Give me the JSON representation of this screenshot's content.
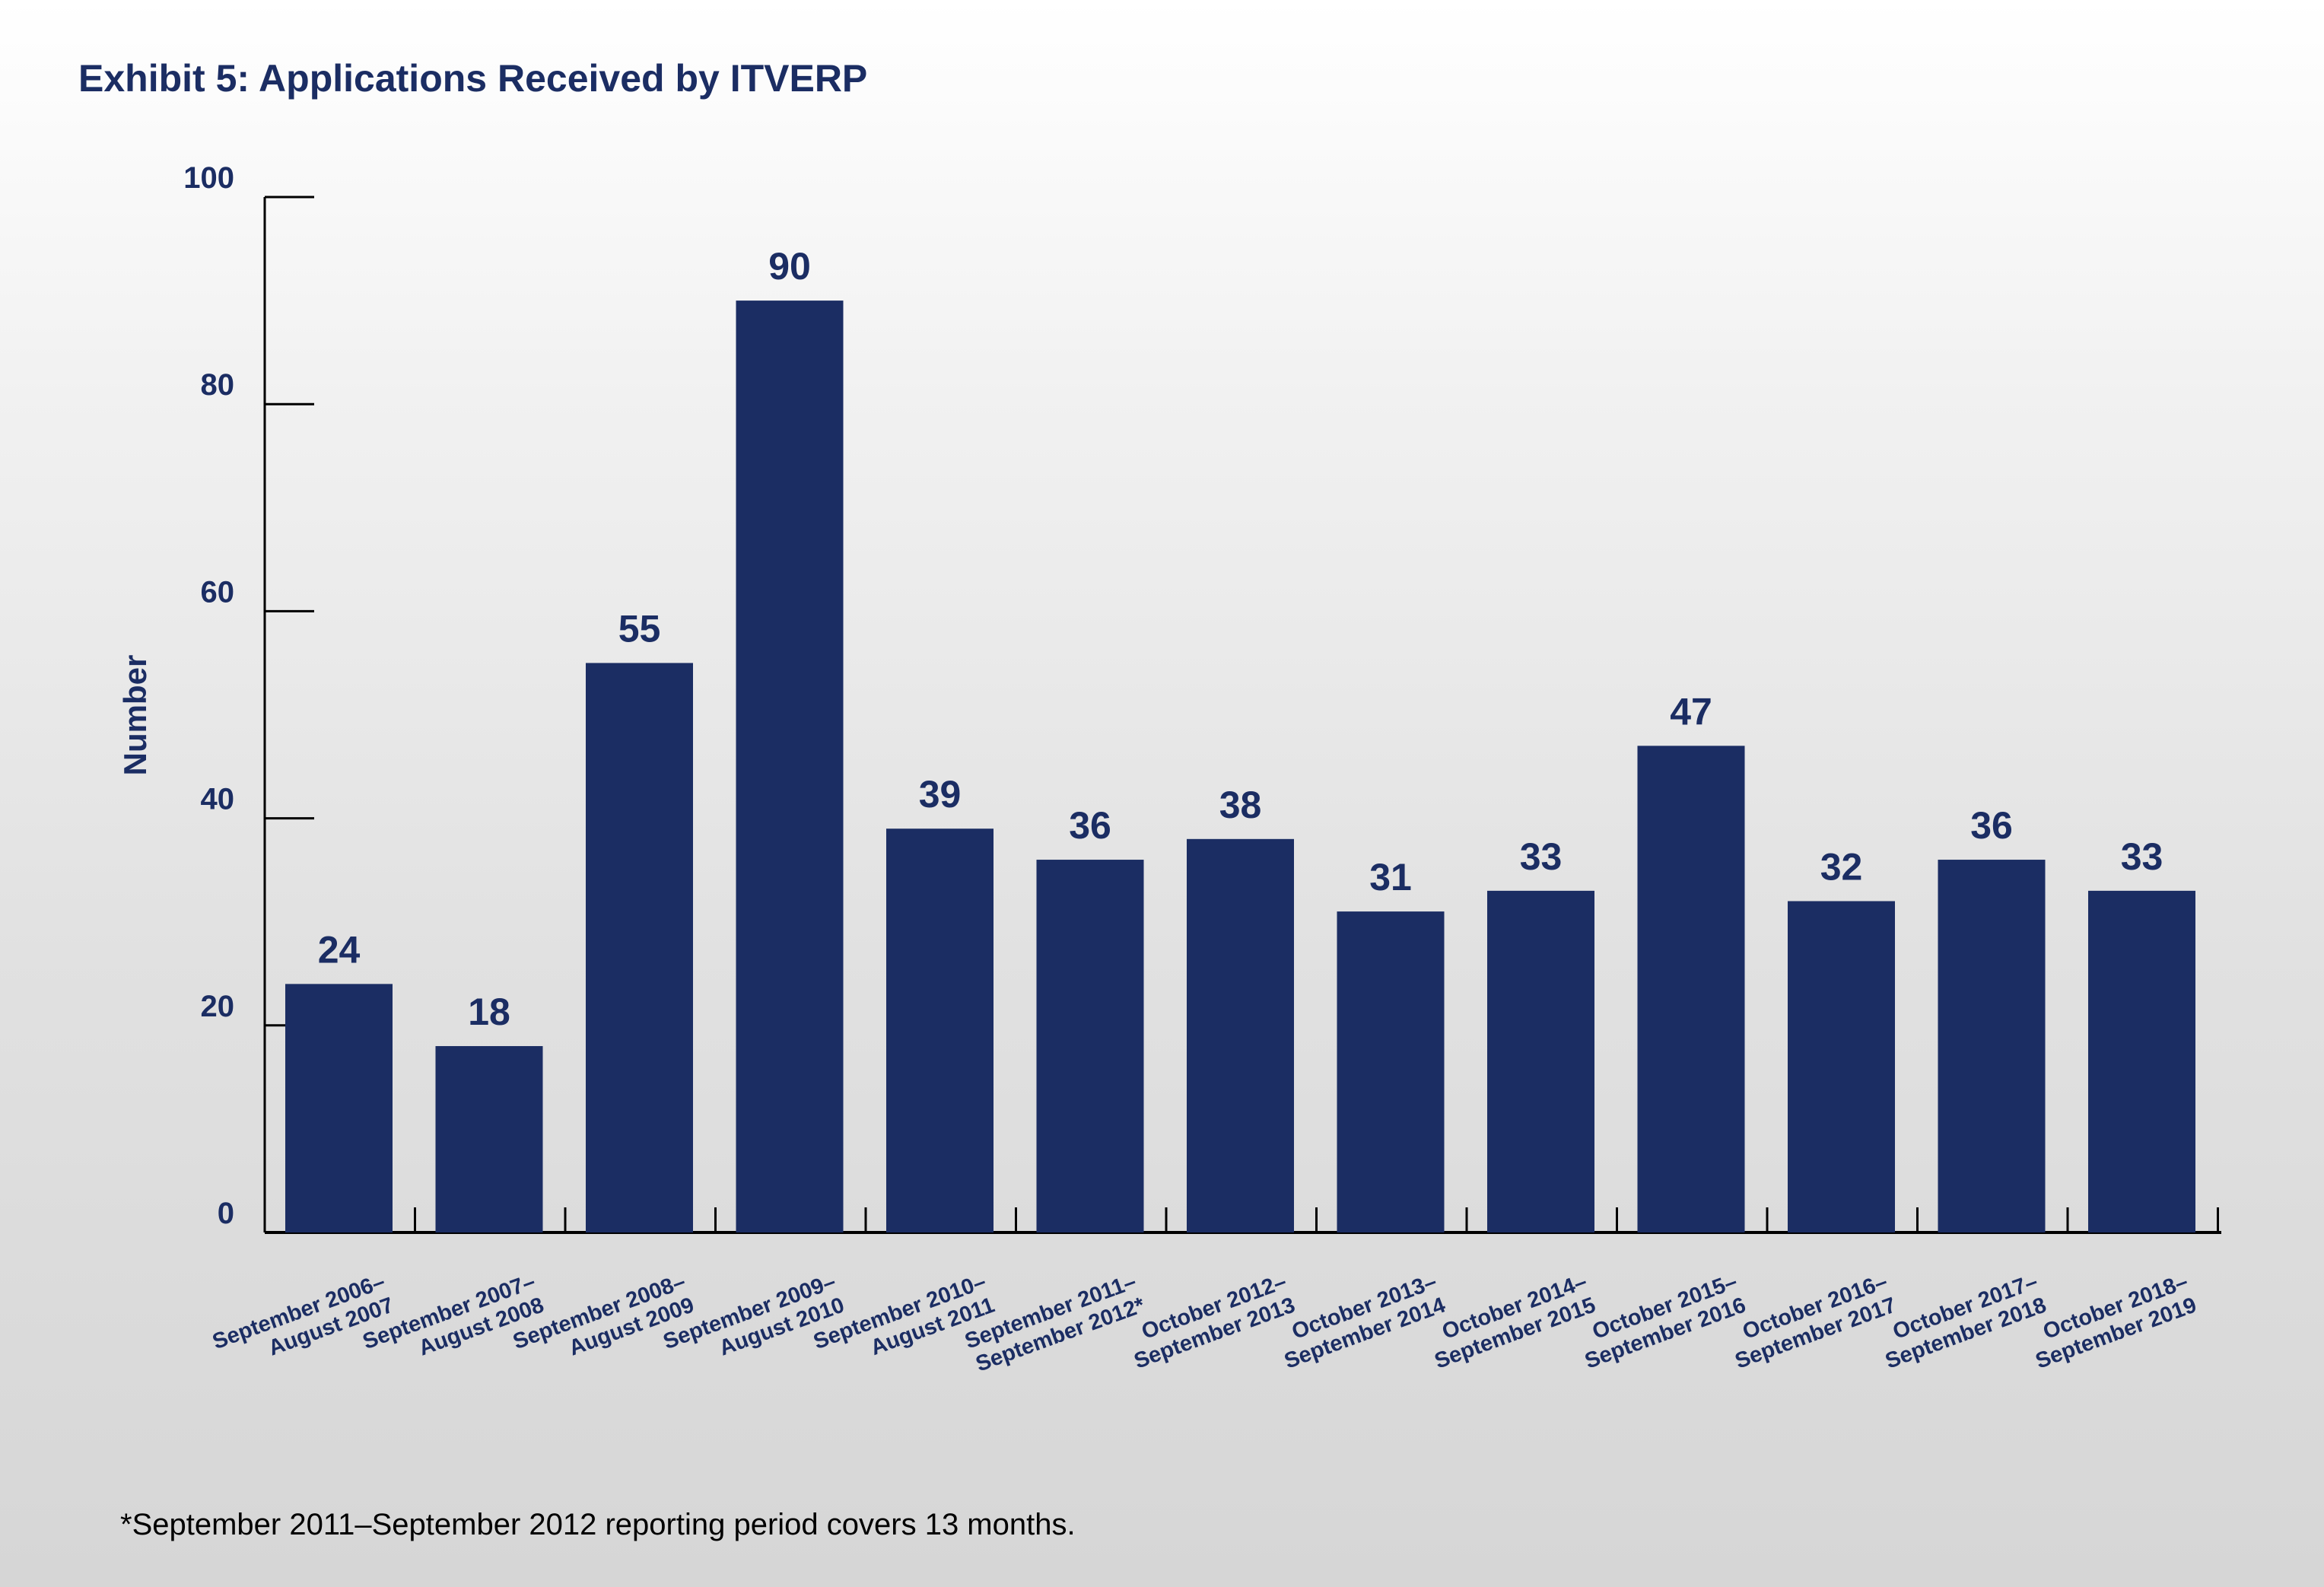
{
  "colors": {
    "bar": "#1b2d63",
    "text": "#1b2d63",
    "axis": "#000000",
    "footnote": "#000000"
  },
  "chart_data": {
    "type": "bar",
    "title": "Exhibit 5: Applications Received by ITVERP",
    "xlabel": "",
    "ylabel": "Number",
    "ylim": [
      0,
      100
    ],
    "yticks": [
      "0",
      "20",
      "40",
      "60",
      "80",
      "100"
    ],
    "categories": [
      [
        "September 2006–",
        "August 2007"
      ],
      [
        "September 2007–",
        "August 2008"
      ],
      [
        "September 2008–",
        "August 2009"
      ],
      [
        "September 2009–",
        "August 2010"
      ],
      [
        "September 2010–",
        "August 2011"
      ],
      [
        "September 2011–",
        "September 2012*"
      ],
      [
        "October 2012–",
        "September 2013"
      ],
      [
        "October 2013–",
        "September 2014"
      ],
      [
        "October 2014–",
        "September 2015"
      ],
      [
        "October 2015–",
        "September 2016"
      ],
      [
        "October 2016–",
        "September 2017"
      ],
      [
        "October 2017–",
        "September 2018"
      ],
      [
        "October 2018–",
        "September 2019"
      ]
    ],
    "values": [
      24,
      18,
      55,
      90,
      39,
      36,
      38,
      31,
      33,
      47,
      32,
      36,
      33
    ],
    "value_labels": [
      "24",
      "18",
      "55",
      "90",
      "39",
      "36",
      "38",
      "31",
      "33",
      "47",
      "32",
      "36",
      "33"
    ],
    "footnote": "*September 2011–September 2012 reporting period covers 13 months."
  }
}
